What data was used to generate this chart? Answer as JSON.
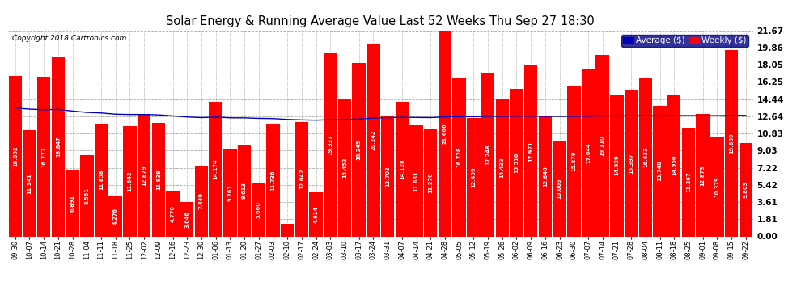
{
  "title": "Solar Energy & Running Average Value Last 52 Weeks Thu Sep 27 18:30",
  "copyright": "Copyright 2018 Cartronics.com",
  "categories": [
    "09-30",
    "10-07",
    "10-14",
    "10-21",
    "10-28",
    "11-04",
    "11-11",
    "11-18",
    "11-25",
    "12-02",
    "12-09",
    "12-16",
    "12-23",
    "12-30",
    "01-06",
    "01-13",
    "01-20",
    "01-27",
    "02-03",
    "02-10",
    "02-17",
    "02-24",
    "03-03",
    "03-10",
    "03-17",
    "03-24",
    "03-31",
    "04-07",
    "04-14",
    "04-21",
    "04-28",
    "05-05",
    "05-12",
    "05-19",
    "05-26",
    "06-02",
    "06-09",
    "06-16",
    "06-23",
    "06-30",
    "07-07",
    "07-14",
    "07-21",
    "07-28",
    "08-04",
    "08-11",
    "08-18",
    "08-25",
    "09-01",
    "09-08",
    "09-15",
    "09-22"
  ],
  "values": [
    16.892,
    11.141,
    16.777,
    18.847,
    6.891,
    8.561,
    11.858,
    4.276,
    11.642,
    12.879,
    11.938,
    4.77,
    3.646,
    7.449,
    14.174,
    9.261,
    9.613,
    5.66,
    11.736,
    1.293,
    12.042,
    4.614,
    19.337,
    14.452,
    18.245,
    20.242,
    12.703,
    14.128,
    11.681,
    11.27,
    21.666,
    16.728,
    12.439,
    17.248,
    14.432,
    15.516,
    17.971,
    12.64,
    10.003,
    15.879,
    17.644,
    19.11,
    14.929,
    15.397,
    16.633,
    13.748,
    14.95,
    11.367,
    12.873,
    10.379,
    19.609,
    9.803
  ],
  "running_avg": [
    13.5,
    13.38,
    13.32,
    13.35,
    13.18,
    13.04,
    12.98,
    12.85,
    12.82,
    12.82,
    12.78,
    12.67,
    12.56,
    12.49,
    12.55,
    12.47,
    12.46,
    12.41,
    12.39,
    12.3,
    12.25,
    12.22,
    12.27,
    12.3,
    12.35,
    12.44,
    12.49,
    12.52,
    12.51,
    12.49,
    12.57,
    12.6,
    12.58,
    12.62,
    12.62,
    12.64,
    12.64,
    12.62,
    12.62,
    12.62,
    12.64,
    12.67,
    12.68,
    12.68,
    12.7,
    12.69,
    12.7,
    12.7,
    12.7,
    12.69,
    12.72,
    12.72
  ],
  "yticks": [
    0.0,
    1.81,
    3.61,
    5.42,
    7.22,
    9.03,
    10.83,
    12.64,
    14.44,
    16.25,
    18.05,
    19.86,
    21.67
  ],
  "bar_color": "#ff0000",
  "avg_line_color": "#0000bb",
  "background_color": "#ffffff",
  "grid_color": "#aaaaaa",
  "legend_avg": "Average ($)",
  "legend_weekly": "Weekly ($)"
}
